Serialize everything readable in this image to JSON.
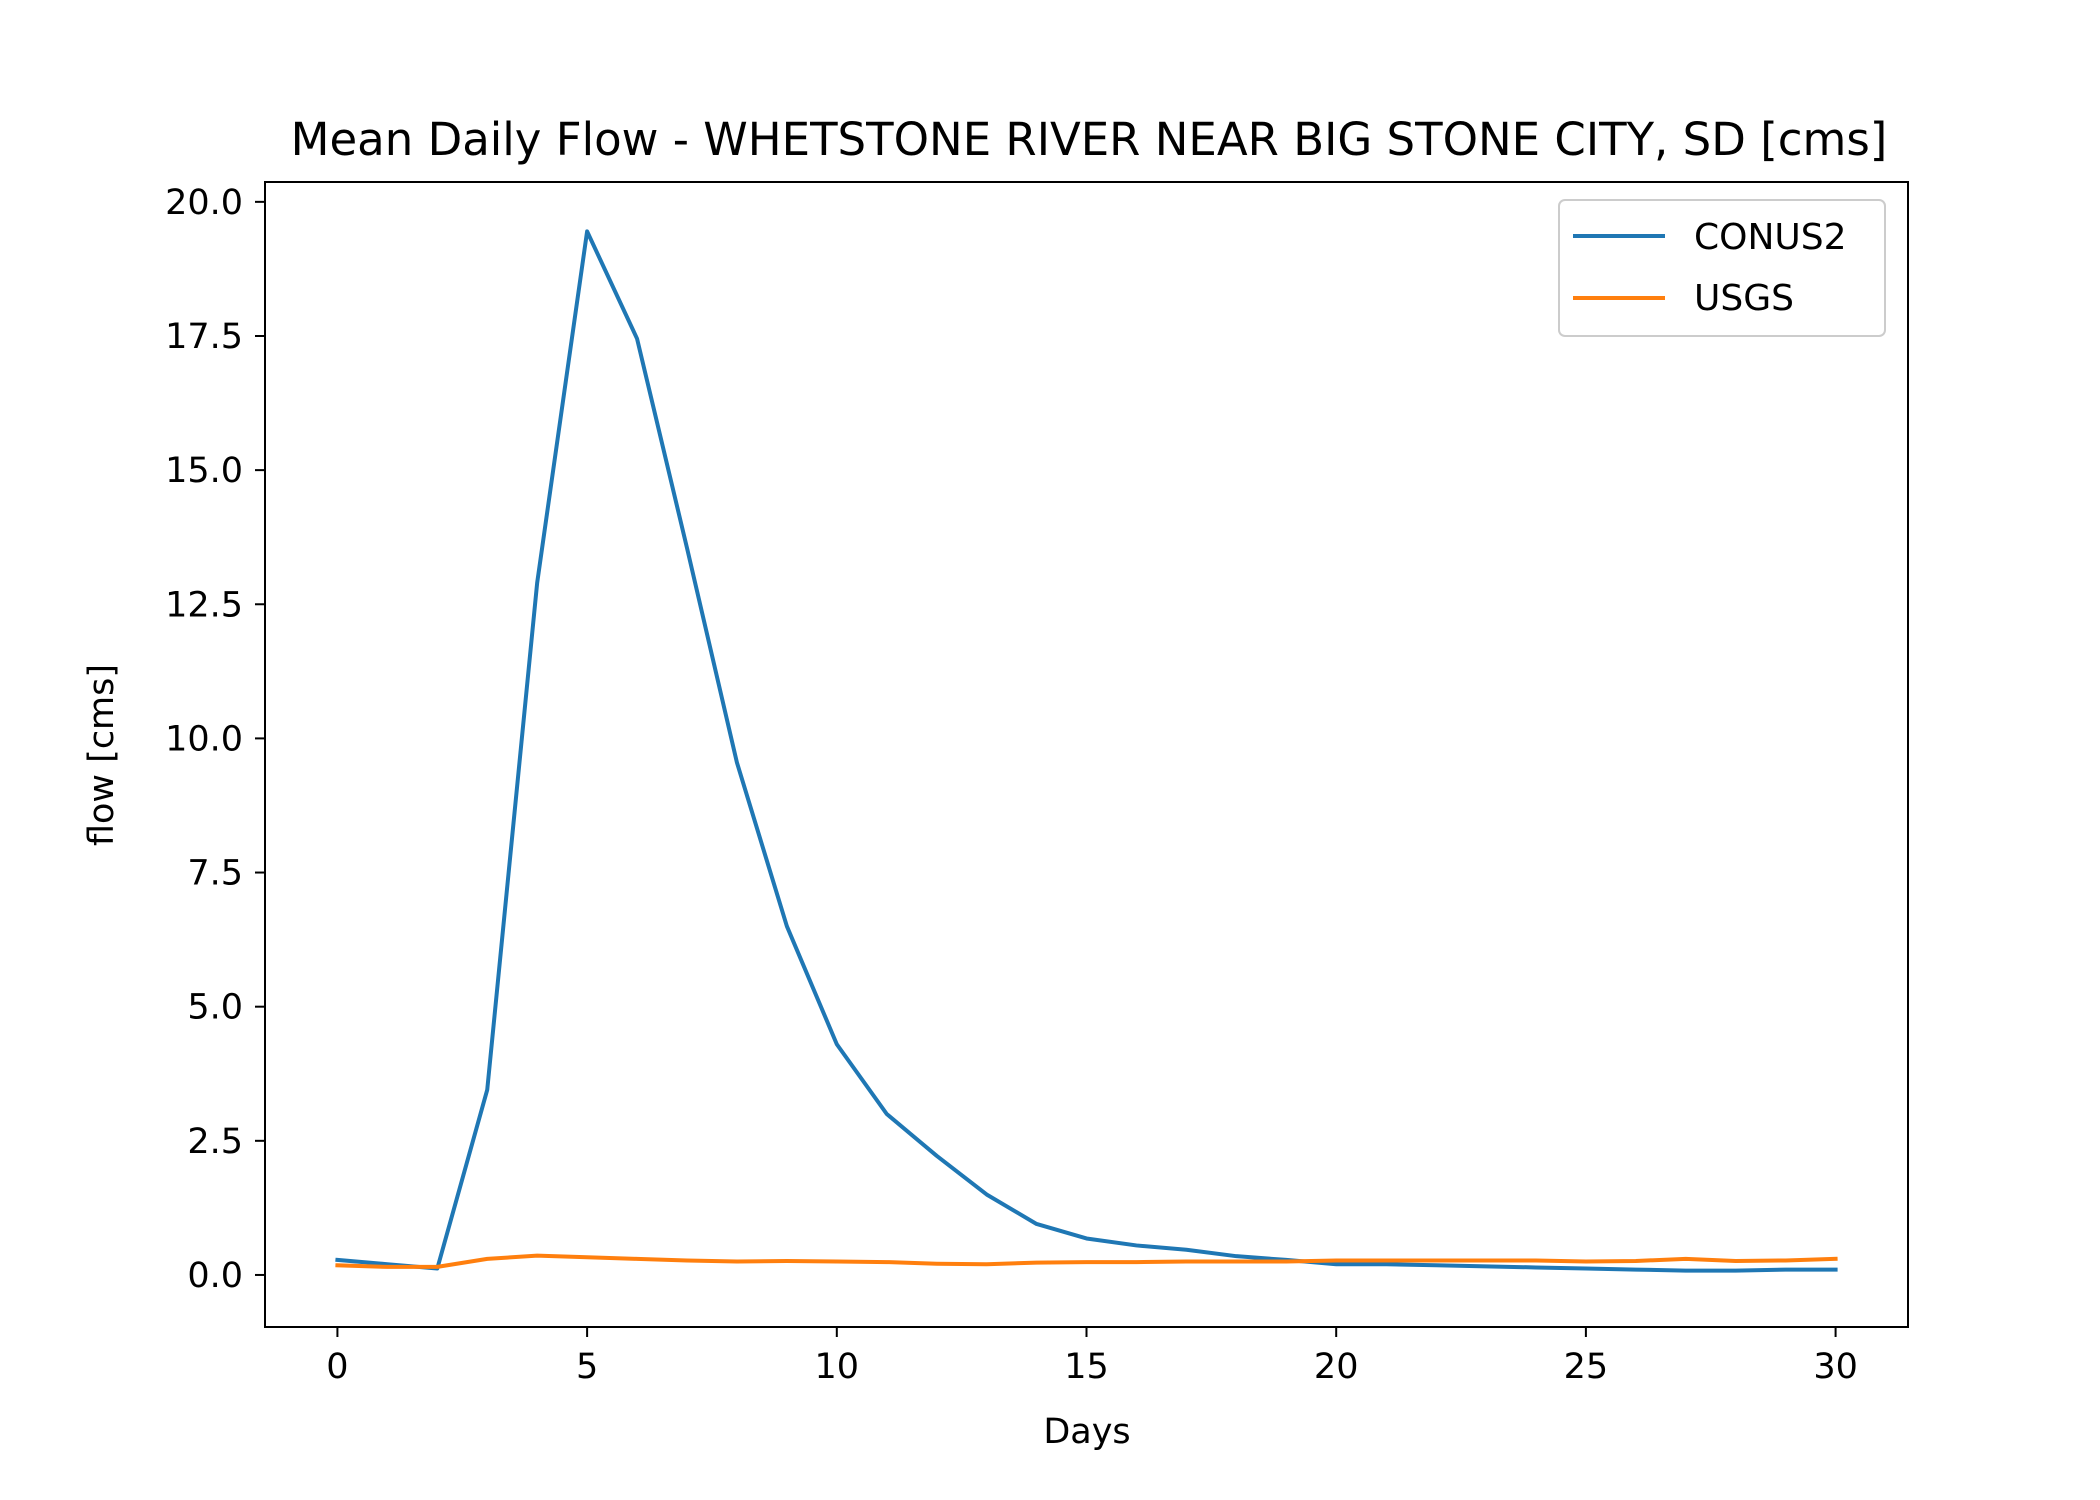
{
  "chart_data": {
    "type": "line",
    "title": "Mean Daily Flow - WHETSTONE RIVER NEAR BIG STONE CITY, SD [cms]",
    "xlabel": "Days",
    "ylabel": "flow [cms]",
    "xlim": [
      -1.45,
      31.45
    ],
    "ylim": [
      -0.97,
      20.37
    ],
    "xticks": [
      0,
      5,
      10,
      15,
      20,
      25,
      30
    ],
    "xtick_labels": [
      "0",
      "5",
      "10",
      "15",
      "20",
      "25",
      "30"
    ],
    "yticks": [
      0,
      2.5,
      5,
      7.5,
      10,
      12.5,
      15,
      17.5,
      20
    ],
    "ytick_labels": [
      "0.0",
      "2.5",
      "5.0",
      "7.5",
      "10.0",
      "12.5",
      "15.0",
      "17.5",
      "20.0"
    ],
    "grid": false,
    "legend_position": "top-right",
    "x": [
      0,
      1,
      2,
      3,
      4,
      5,
      6,
      7,
      8,
      9,
      10,
      11,
      12,
      13,
      14,
      15,
      16,
      17,
      18,
      19,
      20,
      21,
      22,
      23,
      24,
      25,
      26,
      27,
      28,
      29,
      30
    ],
    "series": [
      {
        "name": "CONUS2",
        "color": "#1f77b4",
        "values": [
          0.28,
          0.2,
          0.12,
          3.45,
          12.9,
          19.45,
          17.45,
          13.55,
          9.55,
          6.5,
          4.3,
          3.0,
          2.22,
          1.5,
          0.95,
          0.68,
          0.55,
          0.47,
          0.35,
          0.28,
          0.2,
          0.2,
          0.18,
          0.16,
          0.14,
          0.12,
          0.1,
          0.08,
          0.08,
          0.1,
          0.1
        ]
      },
      {
        "name": "USGS",
        "color": "#ff7f0e",
        "values": [
          0.18,
          0.15,
          0.15,
          0.3,
          0.36,
          0.33,
          0.3,
          0.27,
          0.25,
          0.26,
          0.25,
          0.24,
          0.21,
          0.2,
          0.23,
          0.24,
          0.24,
          0.25,
          0.25,
          0.25,
          0.27,
          0.27,
          0.27,
          0.27,
          0.27,
          0.25,
          0.26,
          0.3,
          0.26,
          0.27,
          0.3
        ]
      }
    ]
  }
}
